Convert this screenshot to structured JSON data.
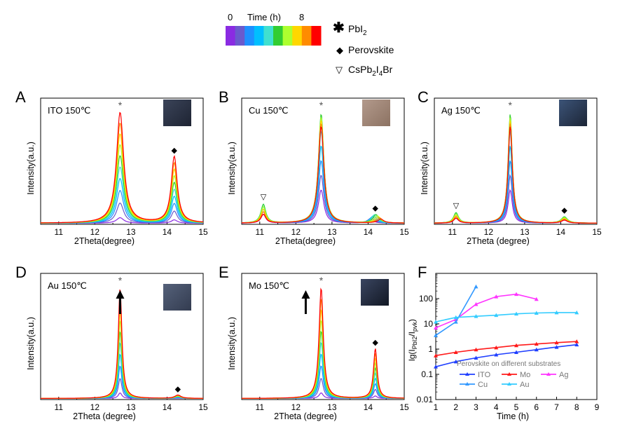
{
  "legend": {
    "colorbar": {
      "start": "0",
      "title": "Time (h)",
      "end": "8",
      "colors": [
        "#8a2be2",
        "#6a5acd",
        "#1e90ff",
        "#00bfff",
        "#40e0d0",
        "#32cd32",
        "#adff2f",
        "#ffd700",
        "#ff8c00",
        "#ff0000"
      ]
    },
    "markers": [
      {
        "symbol": "✱",
        "label": "PbI",
        "sub": "2",
        "after": ""
      },
      {
        "symbol": "◆",
        "label": "Perovskite",
        "sub": "",
        "after": ""
      },
      {
        "symbol": "▽",
        "label": "CsPb",
        "sub": "2",
        "after": "I",
        "sub2": "4",
        "after2": "Br"
      }
    ]
  },
  "chart_data": [
    {
      "id": "A",
      "type": "line",
      "panel_label": "A",
      "title": "ITO 150℃",
      "xlabel": "2Theta(degree)",
      "ylabel": "Intensity(a.u.)",
      "xlim": [
        10.5,
        15
      ],
      "xticks": [
        "11",
        "12",
        "13",
        "14",
        "15"
      ],
      "peaks": [
        {
          "pos": 12.7,
          "max": 1.0,
          "width": 0.12,
          "marker": "*"
        },
        {
          "pos": 14.2,
          "max": 0.6,
          "width": 0.1,
          "marker": "◆"
        }
      ],
      "series_growth": "increasing"
    },
    {
      "id": "B",
      "type": "line",
      "panel_label": "B",
      "title": "Cu 150℃",
      "xlabel": "2Theta(degree)",
      "ylabel": "Intensity(a.u.)",
      "xlim": [
        10.5,
        15
      ],
      "xticks": [
        "11",
        "12",
        "13",
        "14",
        "15"
      ],
      "peaks": [
        {
          "pos": 11.1,
          "max": 0.18,
          "width": 0.08,
          "marker": "▽"
        },
        {
          "pos": 12.7,
          "max": 1.0,
          "width": 0.09,
          "marker": "*"
        },
        {
          "pos": 14.2,
          "max": 0.08,
          "width": 0.1,
          "marker": "◆"
        }
      ],
      "series_growth": "mixed"
    },
    {
      "id": "C",
      "type": "line",
      "panel_label": "C",
      "title": "Ag 150℃",
      "xlabel": "2Theta (degree)",
      "ylabel": "Intensity(a.u.)",
      "xlim": [
        10.5,
        15
      ],
      "xticks": [
        "11",
        "12",
        "13",
        "14",
        "15"
      ],
      "peaks": [
        {
          "pos": 11.1,
          "max": 0.1,
          "width": 0.08,
          "marker": "▽"
        },
        {
          "pos": 12.6,
          "max": 1.0,
          "width": 0.07,
          "marker": "*"
        },
        {
          "pos": 14.1,
          "max": 0.06,
          "width": 0.1,
          "marker": "◆"
        }
      ],
      "series_growth": "mixed"
    },
    {
      "id": "D",
      "type": "line",
      "panel_label": "D",
      "title": "Au 150℃",
      "xlabel": "2Theta (degree)",
      "ylabel": "Intensity(a.u.)",
      "xlim": [
        10.5,
        15
      ],
      "xticks": [
        "11",
        "12",
        "13",
        "14",
        "15"
      ],
      "peaks": [
        {
          "pos": 12.7,
          "max": 1.0,
          "width": 0.06,
          "marker": "*"
        },
        {
          "pos": 14.3,
          "max": 0.03,
          "width": 0.1,
          "marker": "◆"
        }
      ],
      "series_growth": "increasing",
      "arrow": true
    },
    {
      "id": "E",
      "type": "line",
      "panel_label": "E",
      "title": "Mo 150℃",
      "xlabel": "2Theta (degree)",
      "ylabel": "Intensity(a.u.)",
      "xlim": [
        10.5,
        15
      ],
      "xticks": [
        "11",
        "12",
        "13",
        "14",
        "15"
      ],
      "peaks": [
        {
          "pos": 12.7,
          "max": 1.0,
          "width": 0.07,
          "marker": "*"
        },
        {
          "pos": 14.2,
          "max": 0.45,
          "width": 0.06,
          "marker": "◆"
        }
      ],
      "series_growth": "increasing",
      "arrow": true
    },
    {
      "id": "F",
      "type": "line",
      "panel_label": "F",
      "title": "",
      "xlabel": "Time (h)",
      "ylabel_parts": {
        "pre": "lg(I",
        "sub1": "PbI2",
        "mid": "/I",
        "sub2": "pvk",
        "post": ")"
      },
      "xlim": [
        1,
        9
      ],
      "xticks": [
        "1",
        "2",
        "3",
        "4",
        "5",
        "6",
        "7",
        "8",
        "9"
      ],
      "ylim_log": [
        0.01,
        1000
      ],
      "yticks": [
        "0.01",
        "0.1",
        "1",
        "10",
        "100"
      ],
      "legend_title": "Perovskite on different substrates",
      "series": [
        {
          "name": "ITO",
          "color": "#1f3fff",
          "x": [
            1,
            2,
            3,
            4,
            5,
            6,
            7,
            8
          ],
          "y": [
            0.2,
            0.32,
            0.45,
            0.6,
            0.75,
            0.95,
            1.2,
            1.5
          ]
        },
        {
          "name": "Mo",
          "color": "#ff1a1a",
          "x": [
            1,
            2,
            3,
            4,
            5,
            6,
            7,
            8
          ],
          "y": [
            0.55,
            0.75,
            0.95,
            1.15,
            1.4,
            1.6,
            1.8,
            2.0
          ]
        },
        {
          "name": "Ag",
          "color": "#ff33ff",
          "x": [
            1,
            2,
            3,
            4,
            5,
            6
          ],
          "y": [
            7,
            15,
            60,
            120,
            150,
            95
          ]
        },
        {
          "name": "Cu",
          "color": "#3399ff",
          "x": [
            1,
            2,
            3
          ],
          "y": [
            3.5,
            12,
            300
          ]
        },
        {
          "name": "Au",
          "color": "#33ccff",
          "x": [
            1,
            2,
            3,
            4,
            5,
            6,
            7,
            8
          ],
          "y": [
            12,
            18,
            20,
            22,
            25,
            27,
            28,
            28
          ]
        }
      ]
    }
  ]
}
